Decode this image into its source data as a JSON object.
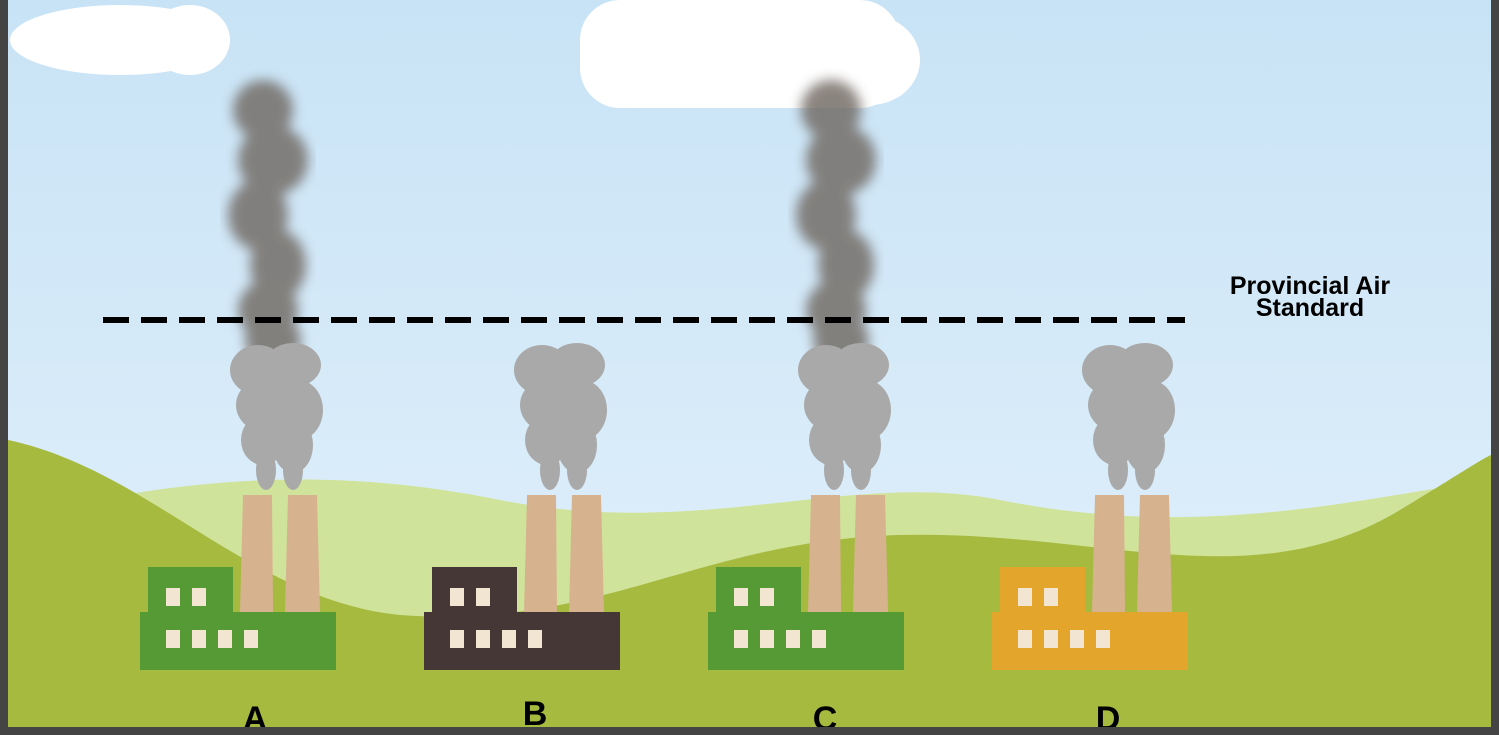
{
  "threshold_label": "Provincial Air Standard",
  "factories": [
    {
      "label": "A",
      "color": "#559a35"
    },
    {
      "label": "B",
      "color": "#453736"
    },
    {
      "label": "C",
      "color": "#559a35"
    },
    {
      "label": "D",
      "color": "#e3a52c"
    }
  ]
}
